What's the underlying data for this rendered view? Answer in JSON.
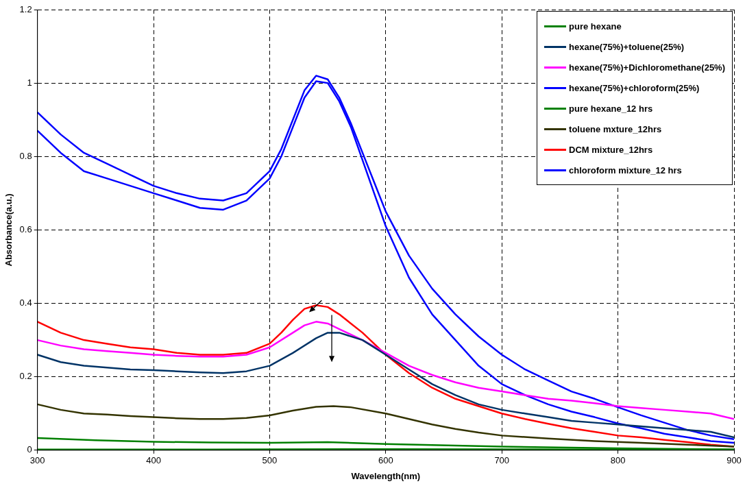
{
  "chart_data": {
    "type": "line",
    "xlabel": "Wavelength(nm)",
    "ylabel": "Absorbance(a.u.)",
    "xlim": [
      300,
      900
    ],
    "xticks": [
      300,
      400,
      500,
      600,
      700,
      800,
      900
    ],
    "ylim": [
      0,
      1.2
    ],
    "yticks": [
      0,
      0.2,
      0.4,
      0.6,
      0.8,
      1,
      1.2
    ],
    "grid": true,
    "legend": "top right",
    "marker": "none",
    "line_style": "solid",
    "series": [
      {
        "name": "pure hexane",
        "color": "#008000",
        "x": [
          300,
          350,
          400,
          450,
          500,
          550,
          600,
          700,
          800,
          900
        ],
        "values": [
          0.033,
          0.027,
          0.023,
          0.021,
          0.02,
          0.022,
          0.017,
          0.01,
          0.005,
          0.002
        ]
      },
      {
        "name": "hexane(75%)+toluene(25%)",
        "color": "#003366",
        "x": [
          300,
          320,
          340,
          360,
          380,
          400,
          420,
          440,
          460,
          480,
          500,
          520,
          540,
          550,
          560,
          580,
          600,
          620,
          640,
          660,
          680,
          700,
          720,
          740,
          760,
          780,
          800,
          820,
          840,
          860,
          880,
          900
        ],
        "values": [
          0.26,
          0.24,
          0.23,
          0.225,
          0.22,
          0.218,
          0.215,
          0.212,
          0.21,
          0.215,
          0.23,
          0.265,
          0.305,
          0.32,
          0.32,
          0.3,
          0.26,
          0.22,
          0.18,
          0.15,
          0.125,
          0.11,
          0.1,
          0.09,
          0.08,
          0.075,
          0.07,
          0.065,
          0.06,
          0.055,
          0.05,
          0.035
        ]
      },
      {
        "name": "hexane(75%)+Dichloromethane(25%)",
        "color": "#ff00ff",
        "x": [
          300,
          320,
          340,
          360,
          380,
          400,
          420,
          440,
          460,
          480,
          500,
          520,
          530,
          540,
          550,
          560,
          580,
          600,
          620,
          640,
          660,
          680,
          700,
          720,
          740,
          760,
          780,
          800,
          820,
          840,
          860,
          880,
          900
        ],
        "values": [
          0.3,
          0.285,
          0.275,
          0.27,
          0.265,
          0.26,
          0.257,
          0.255,
          0.255,
          0.26,
          0.28,
          0.32,
          0.34,
          0.35,
          0.345,
          0.33,
          0.3,
          0.265,
          0.23,
          0.205,
          0.185,
          0.17,
          0.16,
          0.15,
          0.14,
          0.135,
          0.128,
          0.12,
          0.115,
          0.11,
          0.105,
          0.1,
          0.085
        ]
      },
      {
        "name": "hexane(75%)+chloroform(25%)",
        "color": "#0000ff",
        "x": [
          300,
          320,
          340,
          360,
          380,
          400,
          420,
          440,
          460,
          480,
          500,
          510,
          520,
          530,
          540,
          550,
          560,
          570,
          580,
          590,
          600,
          620,
          640,
          660,
          680,
          700,
          720,
          740,
          760,
          780,
          800,
          820,
          840,
          860,
          880,
          900
        ],
        "values": [
          0.92,
          0.86,
          0.81,
          0.78,
          0.75,
          0.72,
          0.7,
          0.685,
          0.68,
          0.7,
          0.76,
          0.82,
          0.9,
          0.98,
          1.02,
          1.01,
          0.96,
          0.89,
          0.81,
          0.73,
          0.65,
          0.53,
          0.44,
          0.37,
          0.31,
          0.26,
          0.22,
          0.19,
          0.16,
          0.14,
          0.117,
          0.095,
          0.075,
          0.055,
          0.04,
          0.03
        ]
      },
      {
        "name": "pure hexane_12 hrs",
        "color": "#008000",
        "x": [
          300,
          450,
          600,
          750,
          900
        ],
        "values": [
          0.002,
          0.002,
          0.003,
          0.002,
          0.002
        ]
      },
      {
        "name": "toluene mxture_12hrs",
        "color": "#333300",
        "x": [
          300,
          320,
          340,
          360,
          380,
          400,
          420,
          440,
          460,
          480,
          500,
          520,
          540,
          555,
          570,
          600,
          620,
          640,
          660,
          680,
          700,
          740,
          780,
          820,
          860,
          900
        ],
        "values": [
          0.125,
          0.11,
          0.1,
          0.097,
          0.093,
          0.09,
          0.087,
          0.085,
          0.085,
          0.088,
          0.095,
          0.108,
          0.118,
          0.12,
          0.117,
          0.1,
          0.085,
          0.07,
          0.058,
          0.048,
          0.04,
          0.032,
          0.025,
          0.02,
          0.015,
          0.01
        ]
      },
      {
        "name": "DCM mixture_12hrs",
        "color": "#ff0000",
        "x": [
          300,
          320,
          340,
          360,
          380,
          400,
          420,
          440,
          460,
          480,
          500,
          510,
          520,
          530,
          540,
          550,
          560,
          580,
          600,
          620,
          640,
          660,
          680,
          700,
          720,
          740,
          760,
          780,
          800,
          820,
          840,
          860,
          880,
          900
        ],
        "values": [
          0.35,
          0.32,
          0.3,
          0.29,
          0.28,
          0.275,
          0.265,
          0.26,
          0.26,
          0.265,
          0.29,
          0.32,
          0.355,
          0.385,
          0.395,
          0.39,
          0.37,
          0.32,
          0.26,
          0.21,
          0.17,
          0.14,
          0.12,
          0.1,
          0.085,
          0.072,
          0.06,
          0.05,
          0.04,
          0.035,
          0.028,
          0.022,
          0.015,
          0.01
        ]
      },
      {
        "name": "chloroform mixture_12 hrs",
        "color": "#0000ff",
        "x": [
          300,
          320,
          340,
          360,
          380,
          400,
          420,
          440,
          460,
          480,
          500,
          510,
          520,
          530,
          540,
          550,
          560,
          570,
          580,
          590,
          600,
          620,
          640,
          660,
          680,
          700,
          720,
          740,
          760,
          780,
          800,
          820,
          840,
          860,
          880,
          900
        ],
        "values": [
          0.87,
          0.81,
          0.76,
          0.74,
          0.72,
          0.7,
          0.68,
          0.66,
          0.655,
          0.68,
          0.74,
          0.8,
          0.88,
          0.96,
          1.005,
          1.0,
          0.95,
          0.88,
          0.79,
          0.7,
          0.61,
          0.47,
          0.37,
          0.3,
          0.23,
          0.18,
          0.15,
          0.125,
          0.105,
          0.09,
          0.073,
          0.06,
          0.045,
          0.035,
          0.025,
          0.02
        ]
      }
    ]
  }
}
